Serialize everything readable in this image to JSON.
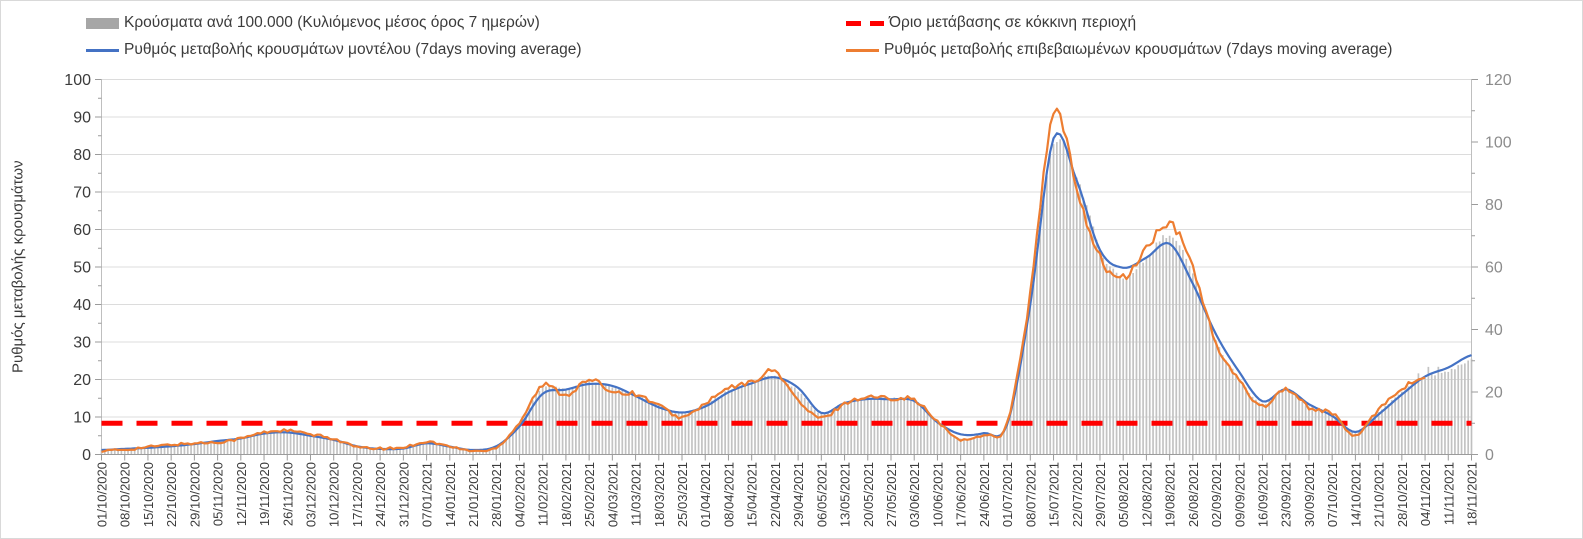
{
  "chart_data": {
    "type": "combo-bar-line",
    "title": "",
    "x_axis": {
      "tick_labels": [
        "01/10/2020",
        "08/10/2020",
        "15/10/2020",
        "22/10/2020",
        "29/10/2020",
        "05/11/2020",
        "12/11/2020",
        "19/11/2020",
        "26/11/2020",
        "03/12/2020",
        "10/12/2020",
        "17/12/2020",
        "24/12/2020",
        "31/12/2020",
        "07/01/2021",
        "14/01/2021",
        "21/01/2021",
        "28/01/2021",
        "04/02/2021",
        "11/02/2021",
        "18/02/2021",
        "25/02/2021",
        "04/03/2021",
        "11/03/2021",
        "18/03/2021",
        "25/03/2021",
        "01/04/2021",
        "08/04/2021",
        "15/04/2021",
        "22/04/2021",
        "29/04/2021",
        "06/05/2021",
        "13/05/2021",
        "20/05/2021",
        "27/05/2021",
        "03/06/2021",
        "10/06/2021",
        "17/06/2021",
        "24/06/2021",
        "01/07/2021",
        "08/07/2021",
        "15/07/2021",
        "22/07/2021",
        "29/07/2021",
        "05/08/2021",
        "12/08/2021",
        "19/08/2021",
        "26/08/2021",
        "02/09/2021",
        "09/09/2021",
        "16/09/2021",
        "23/09/2021",
        "30/09/2021",
        "07/10/2021",
        "14/10/2021",
        "21/10/2021",
        "28/10/2021",
        "04/11/2021",
        "11/11/2021",
        "18/11/2021"
      ]
    },
    "left_axis": {
      "label": "Ρυθμός μεταβολής κρουσμάτων",
      "min": 0,
      "max": 100,
      "major_step": 10,
      "minor_step": 5,
      "tick_labels": [
        "0",
        "10",
        "20",
        "30",
        "40",
        "50",
        "60",
        "70",
        "80",
        "90",
        "100"
      ]
    },
    "right_axis": {
      "min": 0,
      "max": 120,
      "major_step": 20,
      "minor_step": 10,
      "tick_labels": [
        "0",
        "20",
        "40",
        "60",
        "80",
        "100",
        "120"
      ]
    },
    "grid": true,
    "legend_position": "top",
    "series": [
      {
        "name": "Κρούσματα ανά 100.000 (Κυλιόμενος μέσος όρος 7 ημερών)",
        "type": "bar",
        "axis": "right",
        "color": "#c3c3c3",
        "legend_swatch_color": "#a6a6a6",
        "weekly_values": [
          1.4,
          1.7,
          2.3,
          2.9,
          3.5,
          4.1,
          5.2,
          6.9,
          7.4,
          6.2,
          4.9,
          2.6,
          1.9,
          2.1,
          4.0,
          2.5,
          1.5,
          2.4,
          9.8,
          21.5,
          20.8,
          23.3,
          21.8,
          19.2,
          15.8,
          13.2,
          15.9,
          20.6,
          23.0,
          25.2,
          20.2,
          13.2,
          16.6,
          18.1,
          17.9,
          17.4,
          10.3,
          5.1,
          6.6,
          10.0,
          50.0,
          99.0,
          89.0,
          66.0,
          56.5,
          63.0,
          70.0,
          58.0,
          36.5,
          24.0,
          16.2,
          20.8,
          15.2,
          12.6,
          6.8,
          13.6,
          19.8,
          24.8,
          26.5,
          30.5
        ]
      },
      {
        "name": "Όριο μετάβασης σε κόκκινη περιοχή",
        "type": "threshold-line",
        "axis": "right",
        "color": "#ff0000",
        "style": "dashed",
        "value": 10
      },
      {
        "name": "Ρυθμός μεταβολής κρουσμάτων μοντέλου (7days moving average)",
        "type": "line",
        "axis": "left",
        "color": "#4472c4",
        "weekly_values": [
          1.2,
          1.5,
          1.8,
          2.2,
          2.8,
          3.6,
          4.3,
          5.6,
          5.9,
          5.0,
          3.9,
          2.2,
          1.5,
          1.6,
          3.0,
          2.1,
          1.2,
          2.2,
          7.5,
          16.2,
          17.3,
          18.8,
          18.3,
          15.6,
          12.6,
          11.2,
          12.8,
          16.6,
          19.0,
          20.6,
          17.8,
          11.1,
          13.7,
          14.8,
          14.7,
          14.3,
          8.6,
          5.4,
          5.7,
          8.0,
          40.0,
          84.3,
          73.0,
          54.5,
          49.8,
          52.5,
          56.2,
          45.5,
          32.0,
          22.0,
          14.2,
          17.4,
          13.4,
          10.3,
          6.0,
          10.7,
          16.0,
          20.8,
          23.2,
          26.5
        ]
      },
      {
        "name": "Ρυθμός μεταβολής επιβεβαιωμένων κρουσμάτων (7days moving average)",
        "type": "line",
        "axis": "left",
        "color": "#ed7d31",
        "weekly_values": [
          1.0,
          1.3,
          2.0,
          2.6,
          3.0,
          3.3,
          4.3,
          5.9,
          6.4,
          5.3,
          4.2,
          2.0,
          1.6,
          1.9,
          3.4,
          2.1,
          1.0,
          1.9,
          8.6,
          18.4,
          15.9,
          19.8,
          16.9,
          16.1,
          13.1,
          9.9,
          13.6,
          17.6,
          19.3,
          22.2,
          14.3,
          9.7,
          13.6,
          15.3,
          15.0,
          14.6,
          8.7,
          4.0,
          5.3,
          8.4,
          43.0,
          90.7,
          71.0,
          52.5,
          47.0,
          55.0,
          61.2,
          50.0,
          29.5,
          19.6,
          13.0,
          17.5,
          12.5,
          11.0,
          5.0,
          12.1,
          17.6,
          20.6,
          null,
          null
        ]
      }
    ]
  },
  "colors": {
    "grid": "#dcdcdc",
    "axis_line": "#bfbfbf",
    "bottom_axis_line": "#9b9b9b",
    "left_tick_text": "#3b3b3b",
    "right_tick_text": "#8c8c8c",
    "x_tick_text": "#3b3b3b"
  }
}
